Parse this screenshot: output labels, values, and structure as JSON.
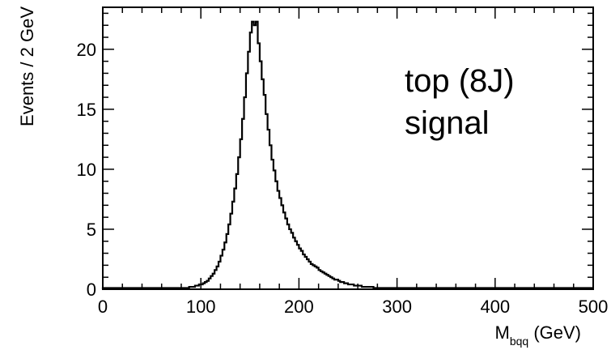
{
  "chart_data": {
    "type": "histogram",
    "xlabel_main": "M",
    "xlabel_sub": "bqq",
    "xlabel_unit": " (GeV)",
    "ylabel": "Events / 2 GeV",
    "xlim": [
      0,
      500
    ],
    "ylim": [
      0,
      23.5
    ],
    "bin_width": 2,
    "x_ticks": [
      0,
      100,
      200,
      300,
      400,
      500
    ],
    "y_ticks": [
      0,
      5,
      10,
      15,
      20
    ],
    "annotation": [
      "top (8J)",
      "signal"
    ],
    "grid": false,
    "series": [
      {
        "values": [
          0.1,
          0.1,
          0.1,
          0.1,
          0.1,
          0.1,
          0.1,
          0.1,
          0.1,
          0.1,
          0.1,
          0.1,
          0.1,
          0.1,
          0.1,
          0.1,
          0.1,
          0.1,
          0.1,
          0.1,
          0.1,
          0.1,
          0.1,
          0.1,
          0.1,
          0.1,
          0.1,
          0.1,
          0.1,
          0.1,
          0.1,
          0.1,
          0.1,
          0.1,
          0.1,
          0.1,
          0.1,
          0.1,
          0.1,
          0.1,
          0.1,
          0.1,
          0.1,
          0.1,
          0.2,
          0.2,
          0.2,
          0.3,
          0.3,
          0.4,
          0.4,
          0.5,
          0.6,
          0.7,
          0.9,
          1.1,
          1.3,
          1.6,
          1.9,
          2.3,
          2.8,
          3.3,
          3.9,
          4.6,
          5.4,
          6.3,
          7.3,
          8.4,
          9.6,
          11.0,
          12.5,
          14.2,
          16.0,
          18.0,
          19.8,
          21.4,
          22.3,
          22.0,
          22.3,
          20.5,
          19.0,
          17.5,
          16.2,
          14.6,
          13.3,
          12.0,
          10.8,
          9.9,
          9.0,
          8.2,
          7.6,
          7.0,
          6.4,
          5.9,
          5.4,
          5.0,
          4.7,
          4.3,
          4.0,
          3.7,
          3.4,
          3.2,
          2.9,
          2.7,
          2.5,
          2.3,
          2.1,
          2.0,
          1.9,
          1.8,
          1.6,
          1.5,
          1.4,
          1.3,
          1.2,
          1.1,
          1.0,
          0.9,
          0.8,
          0.8,
          0.7,
          0.6,
          0.6,
          0.5,
          0.5,
          0.4,
          0.4,
          0.4,
          0.3,
          0.3,
          0.3,
          0.3,
          0.2,
          0.2,
          0.2,
          0.2,
          0.2,
          0.2,
          0.1,
          0.1,
          0.1,
          0.1,
          0.1,
          0.1,
          0.1,
          0.1,
          0.1,
          0.1,
          0.1,
          0.1,
          0.1,
          0.1,
          0.1,
          0.1,
          0.1,
          0.1,
          0.1,
          0.1,
          0.1,
          0.1,
          0.1,
          0.1,
          0.1,
          0.1,
          0.1,
          0.1,
          0.1,
          0.1,
          0.1,
          0.1,
          0.1,
          0.1,
          0.1,
          0.1,
          0.1,
          0.1,
          0.1,
          0.1,
          0.1,
          0.1,
          0.1,
          0.1,
          0.1,
          0.1,
          0.1,
          0.1,
          0.1,
          0.1,
          0.1,
          0.1,
          0.1,
          0.1,
          0.1,
          0.1,
          0.1,
          0.1,
          0.1,
          0.1,
          0.1,
          0.1,
          0.1,
          0.1,
          0.1,
          0.1,
          0.1,
          0.1,
          0.1,
          0.1,
          0.1,
          0.1,
          0.1,
          0.1,
          0.1,
          0.1,
          0.1,
          0.1,
          0.1,
          0.1,
          0.1,
          0.1,
          0.1,
          0.1,
          0.1,
          0.1,
          0.1,
          0.1,
          0.1,
          0.1,
          0.1,
          0.1,
          0.1,
          0.1,
          0.1,
          0.1,
          0.1,
          0.1,
          0.1,
          0.1,
          0.1,
          0.1,
          0.1,
          0.1,
          0.1,
          0.1,
          0.1,
          0.1,
          0.1,
          0.1,
          0.1,
          0.1
        ]
      }
    ],
    "colors": {
      "line": "#000000",
      "frame": "#000000"
    }
  }
}
